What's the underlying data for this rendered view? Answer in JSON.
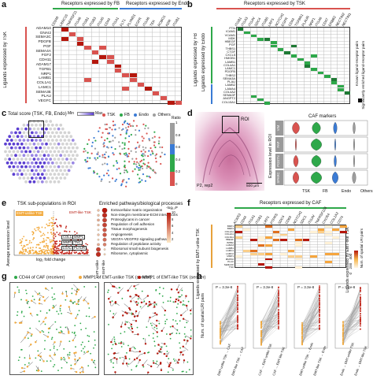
{
  "colors": {
    "fb_green": "#2ea84a",
    "endo_blue": "#3a7bd5",
    "tsk_red": "#d9534f",
    "others_gray": "#9e9e9e",
    "heat_low": "#fde9c6",
    "heat_high": "#b5170c",
    "score_purple": "#5b3fd1",
    "emt_orange": "#f2a93b"
  },
  "panel_a": {
    "label": "a",
    "header_fb": "Receptors expressed by FB",
    "header_endo": "Receptors expressed by Endo",
    "ylabel": "Ligands expressed by TSK",
    "receptors": [
      "CD248",
      "LRRC15",
      "TNFRSF21",
      "ITGA6",
      "ITGB1",
      "ITGB3",
      "ITGA5",
      "CD44",
      "ITGA1",
      "FLT1",
      "PLXND1",
      "EGFR",
      "ITGA6",
      "TEK",
      "ROBO1",
      "KDR",
      "ITGB1"
    ],
    "ligands": [
      "ADAM10",
      "GNAI2",
      "SEMA3C",
      "PDGFB",
      "PGF",
      "SEMA4A",
      "FGF2",
      "CDH11",
      "ADAM17",
      "TGFB1",
      "NRP1",
      "LAMB1",
      "COL1A1",
      "LAMC1",
      "SEMA3E",
      "PLAU",
      "VEGFC"
    ]
  },
  "panel_b": {
    "label": "b",
    "header": "Receptors expressed by TSK",
    "ylabel": "Ligands expressed by FB",
    "ylabel2": "Ligands expressed by Endo",
    "ligands_fb": [
      "PTN",
      "ICAM1",
      "VCAM1",
      "MDK",
      "HBEGF",
      "PGF",
      "THBS1",
      "CTGF",
      "CXCL5",
      "HMGB1",
      "LAMB1",
      "COL4A1",
      "LAMC1",
      "PDGFB",
      "THBS2",
      "SEMA3A",
      "PLAU"
    ],
    "ligands_endo": [
      "LAMB2",
      "LAMA4",
      "COL4A2",
      "SEMA3F",
      "ANGPT2",
      "COL15A1"
    ],
    "legend_known": "Known ligand-receptor pairs",
    "legend_sig": "Significantly enriched ligand-receptor pairs"
  },
  "panel_c": {
    "label": "c",
    "title": "Total score (TSK, FB, Endo)",
    "min": "Min",
    "max": "Max",
    "legend": [
      "TSK",
      "FB",
      "Endo",
      "Others"
    ],
    "ratio_label": "Ratio",
    "ratio_ticks": [
      "1",
      "0.8",
      "0.6",
      "0.4",
      "0.2",
      "0"
    ]
  },
  "panel_d": {
    "label": "d",
    "roi": "ROI",
    "sample": "P2, rep2",
    "scale": "500 μm",
    "title": "CAF markers",
    "ylabel": "Expression level in ROI",
    "genes": [
      "VIM",
      "FAP",
      "POSTN",
      "SPARC"
    ],
    "groups": [
      "TSK",
      "FB",
      "Endo",
      "Others"
    ]
  },
  "panel_e": {
    "label": "e",
    "title": "TSK sub-populations in ROI",
    "legend_unlike": "EMT-unlike TSK",
    "legend_like": "EMT-like TSK",
    "xlabel": "log₂ fold change",
    "ylabel": "Average expression level",
    "genes": [
      "COL1A1",
      "MMP1",
      "MMP10",
      "TNC",
      "LGALS1",
      "PLAUR"
    ],
    "enrich_title": "Enriched pathways/biological processes",
    "pathways": [
      "Extracellular matrix organization",
      "Non-integrin membrane-ECM interactions",
      "Proteoglycans in cancer",
      "Regulation of cell adhesion",
      "Tissue morphogenesis",
      "Angiogenesis",
      "VEGFA-VEGFR2 signaling pathway",
      "Regulation of peptidase activity",
      "Ribosomal small subunit biogenesis",
      "Ribosome, cytoplasmic"
    ],
    "col_unlike": "EMT-unlike",
    "col_like": "EMT-like",
    "scale_label": "-log₁₀P",
    "scale_ticks": [
      "10",
      "8",
      "6",
      "4",
      "2"
    ]
  },
  "panel_f": {
    "label": "f",
    "header": "Receptors expressed by CAF",
    "ylabel": "Ligands expressed by EMT-unlike TSK",
    "ylabel2": "Ligands expressed by EMT-like TSK",
    "receptors": [
      "ACKR3",
      "CD44",
      "ITGA1",
      "ITGB1",
      "LRP1",
      "PTPRS",
      "SDC4",
      "CD63",
      "NOTCH2",
      "SDC1",
      "ITGAV",
      "TNFRSF11B",
      "CXCR4",
      "COL1A2",
      "CD74"
    ],
    "ligands": [
      "BMP1",
      "BMP4",
      "COL1A1",
      "COL4A1",
      "COL5A1",
      "HBEGF",
      "INHBA",
      "LAMA3",
      "LAMB1",
      "LAMC1",
      "LAMC2",
      "MMP1",
      "MMP10",
      "PLAU",
      "SEMA3C",
      "TNC"
    ],
    "cbar_label": "Num. of spatial LRI pairs",
    "cbar_ticks": [
      "0",
      "200",
      "400"
    ]
  },
  "panel_g": {
    "label": "g",
    "legend_caf": "CD44 of CAF (receiver)",
    "legend_unlike": "MMP1 of EMT-unlike TSK (sender)",
    "legend_like": "MMP1 of EMT-like TSK (sender)"
  },
  "panel_h": {
    "label": "h",
    "ylabel": "Num. of spatial LRI pairs",
    "pvals": [
      "P = 3.3e-8",
      "P = 3.3e-8",
      "P = 3.3e-8",
      "P = 3.4e-8"
    ],
    "xticks": [
      [
        "EMT-unlike TSK → CAF",
        "EMT-like TSK → CAF"
      ],
      [
        "CAF → EMT-unlike TSK",
        "CAF → EMT-like TSK"
      ],
      [
        "EMT-unlike TSK → Endo",
        "EMT-like TSK → Endo"
      ],
      [
        "Endo → EMT-unlike TSK",
        "Endo → EMT-like TSK"
      ]
    ]
  }
}
